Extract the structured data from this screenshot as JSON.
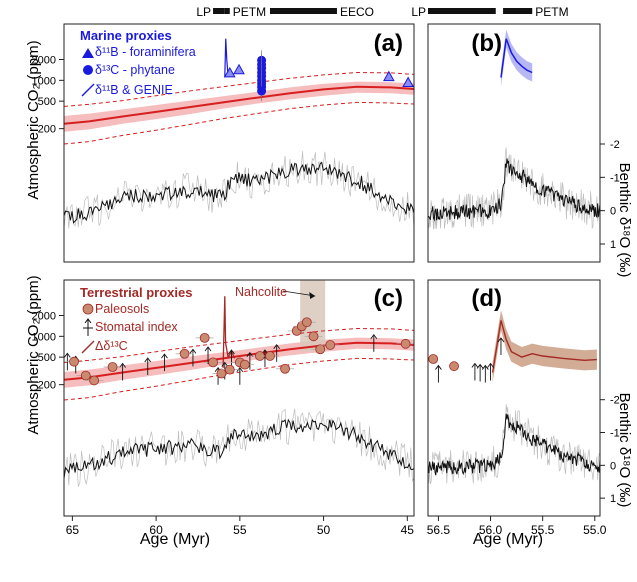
{
  "colors": {
    "marine": "#1a1adf",
    "terrestrial": "#a32a26",
    "co2_line": "#d71f1f",
    "co2_band": "#f4b6b6",
    "benthic": "#111111",
    "benthic_raw": "#bdbdbd",
    "nahcolite_band": "#d9c8bc",
    "paleosol_fill": "#c98a6f",
    "terr_band": "#c8977a"
  },
  "figure": {
    "xlabel": "Age (Myr)",
    "ylabel_co2": "Atmospheric CO₂ (ppm)",
    "ylabel_benthic": "Benthic δ¹⁸O (‰)",
    "events_left": [
      {
        "label": "LP",
        "start": 56.6,
        "end": 55.9
      },
      {
        "label": "PETM",
        "start": 55.9,
        "end": 55.6
      },
      {
        "label": "EECO",
        "start": 53.2,
        "end": 49.2
      }
    ],
    "events_right": [
      {
        "label": "LP",
        "start": 56.6,
        "end": 55.95
      },
      {
        "label": "PETM",
        "start": 55.88,
        "end": 55.6
      }
    ]
  },
  "panels": {
    "a": {
      "letter": "(a)",
      "legend_title": "Marine proxies",
      "legend": [
        "δ¹¹B - foraminifera",
        "δ¹³C - phytane",
        "δ¹¹B & GENIE"
      ]
    },
    "b": {
      "letter": "(b)"
    },
    "c": {
      "letter": "(c)",
      "legend_title": "Terrestrial proxies",
      "legend": [
        "Paleosols",
        "Stomatal index",
        "Δδ¹³C"
      ],
      "annotation": "Nahcolite"
    },
    "d": {
      "letter": "(d)"
    }
  },
  "chart_data": [
    {
      "id": "a",
      "type": "line",
      "x_axis": {
        "range": [
          65.5,
          44.6
        ],
        "ticks": [
          65,
          60,
          55,
          50,
          45
        ],
        "reversed": true
      },
      "y_axis_left": {
        "scale": "log",
        "range": [
          120,
          5000
        ],
        "ticks": [
          200,
          500,
          1000,
          2000
        ]
      },
      "y_axis_right": {
        "range": [
          -2.6,
          1.3
        ],
        "reversed": true,
        "ticks": [
          -2,
          -1,
          0,
          1
        ]
      },
      "series": [
        {
          "kind": "co2_median",
          "x": [
            65.5,
            64,
            62,
            60,
            58,
            56,
            54,
            52,
            50,
            48,
            46,
            44.6
          ],
          "y": [
            235,
            255,
            300,
            350,
            410,
            480,
            560,
            650,
            740,
            810,
            790,
            750
          ]
        },
        {
          "kind": "co2_band_upper",
          "x": [
            65.5,
            64,
            62,
            60,
            58,
            56,
            54,
            52,
            50,
            48,
            46,
            44.6
          ],
          "y": [
            305,
            330,
            380,
            440,
            510,
            590,
            680,
            790,
            890,
            960,
            940,
            900
          ]
        },
        {
          "kind": "co2_band_lower",
          "x": [
            65.5,
            64,
            62,
            60,
            58,
            56,
            54,
            52,
            50,
            48,
            46,
            44.6
          ],
          "y": [
            180,
            195,
            235,
            275,
            325,
            390,
            460,
            530,
            600,
            660,
            650,
            620
          ]
        },
        {
          "kind": "co2_ci_upper",
          "x": [
            65.5,
            64,
            62,
            60,
            58,
            56,
            54,
            52,
            50,
            48,
            46,
            44.6
          ],
          "y": [
            420,
            450,
            510,
            600,
            700,
            810,
            930,
            1070,
            1200,
            1300,
            1280,
            1220
          ]
        },
        {
          "kind": "co2_ci_lower",
          "x": [
            65.5,
            64,
            62,
            60,
            58,
            56,
            54,
            52,
            50,
            48,
            46,
            44.6
          ],
          "y": [
            120,
            130,
            160,
            190,
            230,
            280,
            330,
            390,
            440,
            480,
            470,
            455
          ]
        },
        {
          "kind": "boron_foram",
          "x": [
            55.6,
            55.05,
            46.1,
            44.95
          ],
          "y": [
            1280,
            1420,
            1130,
            930
          ]
        },
        {
          "kind": "phytane",
          "x": [
            53.7,
            53.7,
            53.7,
            53.7,
            53.7,
            53.7,
            53.7,
            53.7,
            53.7
          ],
          "y": [
            1950,
            1700,
            1500,
            1300,
            1150,
            1000,
            900,
            800,
            700
          ]
        },
        {
          "kind": "benthic",
          "x": [
            65.5,
            64,
            62,
            60,
            58,
            56,
            55.5,
            54,
            52,
            50,
            48,
            46,
            44.6
          ],
          "y": [
            0.2,
            0.05,
            -0.4,
            -0.5,
            -0.6,
            -0.4,
            -1.0,
            -0.9,
            -1.2,
            -1.3,
            -0.9,
            -0.3,
            0.05
          ]
        }
      ]
    },
    {
      "id": "b",
      "type": "line",
      "x_axis": {
        "range": [
          56.6,
          54.95
        ],
        "ticks": [
          56.5,
          56.0,
          55.5,
          55.0
        ],
        "reversed": true
      },
      "series": [
        {
          "kind": "boron_genie",
          "x": [
            55.9,
            55.85,
            55.8,
            55.75,
            55.7,
            55.65,
            55.6
          ],
          "y": [
            1100,
            4000,
            2500,
            1900,
            1600,
            1400,
            1300
          ]
        },
        {
          "kind": "benthic",
          "x": [
            56.6,
            56.3,
            56.0,
            55.9,
            55.85,
            55.6,
            55.3,
            55.0
          ],
          "y": [
            0.1,
            0.05,
            0.0,
            -0.2,
            -1.4,
            -0.8,
            -0.3,
            0.0
          ]
        }
      ]
    },
    {
      "id": "c",
      "type": "scatter",
      "x_axis": {
        "range": [
          65.5,
          44.6
        ],
        "ticks": [
          65,
          60,
          55,
          50,
          45
        ],
        "reversed": true
      },
      "y_axis_left": {
        "scale": "log",
        "range": [
          120,
          5000
        ],
        "ticks": [
          200,
          500,
          1000,
          2000
        ]
      },
      "y_axis_right": {
        "range": [
          -2.6,
          1.3
        ],
        "reversed": true,
        "ticks": [
          -2,
          -1,
          0,
          1
        ]
      },
      "series": [
        {
          "kind": "paleosols",
          "x": [
            64.9,
            64.2,
            63.7,
            62.6,
            58.3,
            57.1,
            56.6,
            56.1,
            55.6,
            55.0,
            54.7,
            53.8,
            53.2,
            52.3,
            51.6,
            51.3,
            51.0,
            50.6,
            50.2,
            49.6,
            45.1
          ],
          "y": [
            430,
            270,
            230,
            360,
            560,
            950,
            420,
            290,
            330,
            420,
            390,
            520,
            520,
            340,
            1200,
            1400,
            1600,
            1000,
            650,
            750,
            780
          ]
        },
        {
          "kind": "stomatal",
          "x": [
            65.3,
            64.8,
            62.0,
            60.5,
            59.5,
            57.8,
            56.9,
            56.3,
            55.9,
            55.5,
            55.0,
            54.4,
            53.5,
            52.8,
            47.0
          ],
          "y": [
            420,
            380,
            300,
            360,
            410,
            480,
            520,
            260,
            310,
            470,
            260,
            430,
            470,
            560,
            780
          ]
        },
        {
          "kind": "benthic",
          "x": [
            65.5,
            64,
            62,
            60,
            58,
            56,
            55.5,
            54,
            52,
            50,
            48,
            46,
            44.6
          ],
          "y": [
            0.2,
            0.05,
            -0.4,
            -0.5,
            -0.6,
            -0.4,
            -1.0,
            -0.9,
            -1.2,
            -1.3,
            -0.9,
            -0.3,
            0.05
          ]
        }
      ]
    },
    {
      "id": "d",
      "type": "scatter",
      "x_axis": {
        "range": [
          56.6,
          54.95
        ],
        "ticks": [
          56.5,
          56.0,
          55.5,
          55.0
        ],
        "reversed": true
      },
      "series": [
        {
          "kind": "paleosols",
          "x": [
            56.55,
            56.35
          ],
          "y": [
            470,
            370
          ]
        },
        {
          "kind": "stomatal",
          "x": [
            56.5,
            56.15,
            56.1,
            56.05,
            56.0,
            55.9
          ],
          "y": [
            280,
            300,
            290,
            280,
            300,
            700
          ]
        },
        {
          "kind": "terr_d13c",
          "x": [
            55.98,
            55.9,
            55.85,
            55.8,
            55.7,
            55.6,
            55.5,
            55.3,
            55.1,
            54.98
          ],
          "y": [
            300,
            1700,
            900,
            600,
            500,
            560,
            520,
            480,
            450,
            460
          ]
        },
        {
          "kind": "benthic",
          "x": [
            56.6,
            56.3,
            56.0,
            55.9,
            55.85,
            55.6,
            55.3,
            55.0
          ],
          "y": [
            0.1,
            0.05,
            0.0,
            -0.2,
            -1.4,
            -0.8,
            -0.3,
            0.0
          ]
        }
      ]
    }
  ]
}
